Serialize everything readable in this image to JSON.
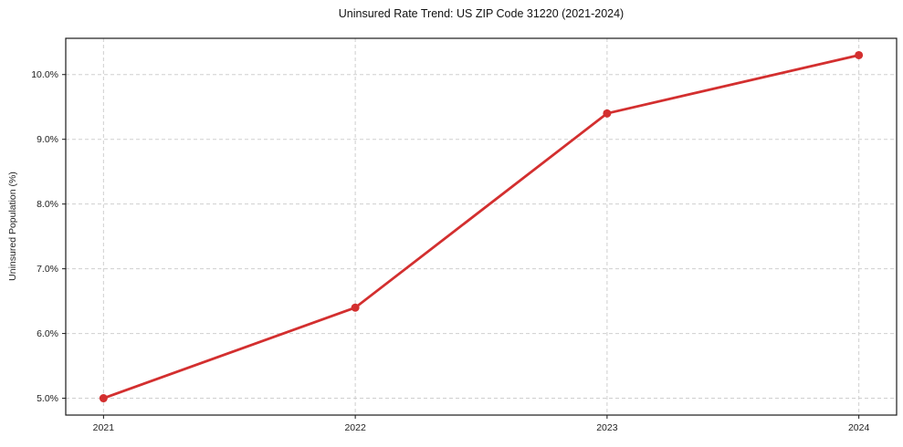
{
  "chart_data": {
    "type": "line",
    "title": "Uninsured Rate Trend: US ZIP Code 31220 (2021-2024)",
    "xlabel": "",
    "ylabel": "Uninsured Population (%)",
    "x": [
      2021,
      2022,
      2023,
      2024
    ],
    "series": [
      {
        "name": "Uninsured Rate",
        "values": [
          5.0,
          6.4,
          9.4,
          10.3
        ]
      }
    ],
    "xticks": [
      2021,
      2022,
      2023,
      2024
    ],
    "xtick_labels": [
      "2021",
      "2022",
      "2023",
      "2024"
    ],
    "yticks": [
      5.0,
      6.0,
      7.0,
      8.0,
      9.0,
      10.0
    ],
    "ytick_labels": [
      "5.0%",
      "6.0%",
      "7.0%",
      "8.0%",
      "9.0%",
      "10.0%"
    ],
    "xlim": [
      2020.85,
      2024.15
    ],
    "ylim": [
      4.74,
      10.56
    ],
    "grid": true,
    "grid_style": "dashed",
    "legend_position": "none",
    "colors": {
      "line": "#d32f2f",
      "marker": "#d32f2f",
      "grid": "#cfcfcf",
      "spine": "#1a1a1a",
      "text": "#222222",
      "background": "#ffffff"
    }
  }
}
